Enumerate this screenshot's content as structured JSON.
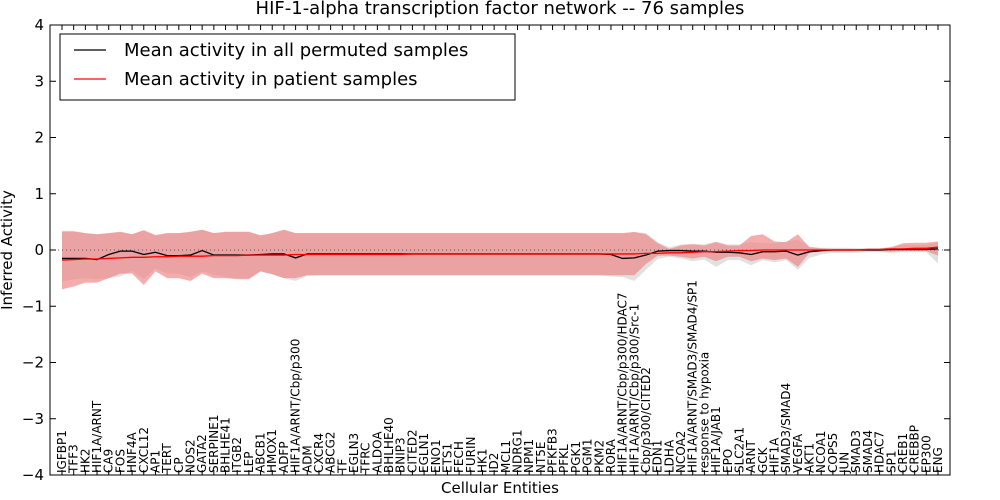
{
  "chart_data": {
    "type": "line",
    "title": "HIF-1-alpha transcription factor network -- 76 samples",
    "xlabel": "Cellular Entities",
    "ylabel": "Inferred Activity",
    "ylim": [
      -4,
      4
    ],
    "yticks": [
      "4",
      "3",
      "2",
      "1",
      "0",
      "−1",
      "−2",
      "−3",
      "−4"
    ],
    "grid": false,
    "legend_position": "top-left",
    "zero_line": "dotted",
    "categories": [
      "IGFBP1",
      "TFF3",
      "HK2",
      "HIF1A/ARNT",
      "CA9",
      "FOS",
      "HNF4A",
      "CXCL12",
      "AP1",
      "TERT",
      "CP",
      "NOS2",
      "GATA2",
      "SERPINE1",
      "BHLHE41",
      "ITGB2",
      "LEP",
      "ABCB1",
      "HMOX1",
      "ADFP",
      "HIF1A/ARNT/Cbp/p300",
      "ADM",
      "CXCR4",
      "ABCG2",
      "TF",
      "EGLN3",
      "TFRC",
      "ALDOA",
      "BHLHE40",
      "BNIP3",
      "CITED2",
      "EGLN1",
      "ENO1",
      "ETS1",
      "FECH",
      "FURIN",
      "HK1",
      "ID2",
      "MCL1",
      "NDRG1",
      "NPM1",
      "NT5E",
      "PFKFB3",
      "PFKL",
      "PGK1",
      "PGM1",
      "PKM2",
      "RORA",
      "HIF1A/ARNT/Cbp/p300/HDAC7",
      "HIF1A/ARNT/Cbp/p300/Src-1",
      "Cbp/p300/CITED2",
      "EDN1",
      "LDHA",
      "NCOA2",
      "HIF1A/ARNT/SMAD3/SMAD4/SP1",
      "response to hypoxia",
      "HIF1A/JAB1",
      "EPO",
      "SLC2A1",
      "ARNT",
      "GCK",
      "HIF1A",
      "SMAD3/SMAD4",
      "VEGFA",
      "AKT1",
      "NCOA1",
      "COPS5",
      "JUN",
      "SMAD3",
      "SMAD4",
      "HDAC7",
      "SP1",
      "CREB1",
      "CREBBP",
      "EP300",
      "ENG"
    ],
    "series": [
      {
        "name": "Mean activity in all permuted samples",
        "color": "#000000",
        "band_color": "#c8c8c8",
        "values": [
          -0.15,
          -0.15,
          -0.15,
          -0.17,
          -0.08,
          -0.02,
          -0.02,
          -0.08,
          -0.04,
          -0.1,
          -0.1,
          -0.09,
          -0.01,
          -0.09,
          -0.09,
          -0.09,
          -0.09,
          -0.08,
          -0.07,
          -0.07,
          -0.14,
          -0.07,
          -0.07,
          -0.07,
          -0.07,
          -0.07,
          -0.07,
          -0.07,
          -0.07,
          -0.07,
          -0.07,
          -0.07,
          -0.07,
          -0.07,
          -0.07,
          -0.07,
          -0.07,
          -0.07,
          -0.07,
          -0.07,
          -0.07,
          -0.07,
          -0.07,
          -0.07,
          -0.07,
          -0.07,
          -0.07,
          -0.08,
          -0.15,
          -0.14,
          -0.09,
          -0.02,
          -0.01,
          -0.01,
          -0.02,
          -0.02,
          -0.04,
          -0.04,
          -0.05,
          -0.08,
          -0.03,
          -0.03,
          -0.02,
          -0.09,
          -0.03,
          -0.01,
          0.0,
          0.0,
          0.0,
          0.0,
          0.0,
          0.01,
          0.01,
          0.01,
          0.01,
          0.02
        ],
        "upper": [
          0.34,
          0.34,
          0.3,
          0.28,
          0.3,
          0.33,
          0.28,
          0.35,
          0.27,
          0.3,
          0.3,
          0.33,
          0.36,
          0.3,
          0.33,
          0.33,
          0.33,
          0.26,
          0.3,
          0.36,
          0.3,
          0.3,
          0.3,
          0.3,
          0.3,
          0.3,
          0.3,
          0.3,
          0.3,
          0.3,
          0.3,
          0.3,
          0.3,
          0.3,
          0.3,
          0.3,
          0.3,
          0.3,
          0.3,
          0.3,
          0.3,
          0.3,
          0.3,
          0.3,
          0.3,
          0.3,
          0.3,
          0.3,
          0.3,
          0.32,
          0.3,
          0.14,
          0.05,
          0.1,
          0.11,
          0.1,
          0.15,
          0.1,
          0.1,
          0.14,
          0.12,
          0.12,
          0.15,
          0.18,
          0.06,
          0.04,
          0.04,
          0.04,
          0.03,
          0.03,
          0.03,
          0.06,
          0.09,
          0.09,
          0.09,
          0.13
        ],
        "lower": [
          -0.56,
          -0.52,
          -0.5,
          -0.52,
          -0.5,
          -0.47,
          -0.37,
          -0.52,
          -0.33,
          -0.42,
          -0.42,
          -0.48,
          -0.38,
          -0.44,
          -0.48,
          -0.5,
          -0.5,
          -0.38,
          -0.43,
          -0.5,
          -0.55,
          -0.46,
          -0.45,
          -0.45,
          -0.45,
          -0.45,
          -0.45,
          -0.45,
          -0.45,
          -0.45,
          -0.45,
          -0.45,
          -0.45,
          -0.45,
          -0.45,
          -0.45,
          -0.45,
          -0.45,
          -0.45,
          -0.45,
          -0.45,
          -0.45,
          -0.45,
          -0.45,
          -0.45,
          -0.45,
          -0.45,
          -0.47,
          -0.48,
          -0.55,
          -0.35,
          -0.16,
          -0.12,
          -0.15,
          -0.2,
          -0.17,
          -0.3,
          -0.18,
          -0.18,
          -0.27,
          -0.18,
          -0.22,
          -0.18,
          -0.35,
          -0.14,
          -0.08,
          -0.05,
          -0.05,
          -0.05,
          -0.04,
          -0.04,
          -0.05,
          -0.04,
          -0.04,
          -0.04,
          -0.24
        ]
      },
      {
        "name": "Mean activity in patient samples",
        "color": "#ff0000",
        "band_color": "#f08080",
        "values": [
          -0.18,
          -0.17,
          -0.16,
          -0.16,
          -0.15,
          -0.14,
          -0.13,
          -0.13,
          -0.12,
          -0.12,
          -0.11,
          -0.11,
          -0.11,
          -0.1,
          -0.1,
          -0.1,
          -0.09,
          -0.09,
          -0.09,
          -0.09,
          -0.08,
          -0.08,
          -0.08,
          -0.08,
          -0.08,
          -0.08,
          -0.08,
          -0.08,
          -0.08,
          -0.08,
          -0.07,
          -0.07,
          -0.07,
          -0.07,
          -0.07,
          -0.07,
          -0.07,
          -0.07,
          -0.07,
          -0.07,
          -0.07,
          -0.07,
          -0.07,
          -0.07,
          -0.07,
          -0.07,
          -0.07,
          -0.07,
          -0.07,
          -0.07,
          -0.06,
          -0.06,
          -0.05,
          -0.05,
          -0.04,
          -0.03,
          -0.03,
          -0.02,
          -0.01,
          -0.01,
          0.0,
          0.0,
          0.0,
          0.0,
          0.0,
          0.0,
          0.0,
          0.0,
          0.0,
          0.01,
          0.01,
          0.02,
          0.02,
          0.03,
          0.03,
          0.05
        ],
        "upper": [
          0.33,
          0.33,
          0.3,
          0.28,
          0.3,
          0.32,
          0.28,
          0.35,
          0.26,
          0.3,
          0.3,
          0.32,
          0.36,
          0.3,
          0.32,
          0.32,
          0.32,
          0.26,
          0.3,
          0.36,
          0.3,
          0.3,
          0.3,
          0.3,
          0.3,
          0.3,
          0.3,
          0.3,
          0.3,
          0.3,
          0.3,
          0.3,
          0.3,
          0.3,
          0.3,
          0.3,
          0.3,
          0.3,
          0.3,
          0.3,
          0.3,
          0.3,
          0.3,
          0.3,
          0.3,
          0.3,
          0.3,
          0.3,
          0.3,
          0.32,
          0.28,
          0.12,
          0.02,
          0.08,
          0.1,
          0.08,
          0.14,
          0.08,
          0.08,
          0.25,
          0.28,
          0.15,
          0.14,
          0.28,
          0.05,
          0.03,
          0.02,
          0.02,
          0.02,
          0.02,
          0.02,
          0.05,
          0.12,
          0.13,
          0.13,
          0.15
        ],
        "lower": [
          -0.7,
          -0.65,
          -0.58,
          -0.58,
          -0.5,
          -0.42,
          -0.42,
          -0.62,
          -0.38,
          -0.5,
          -0.5,
          -0.55,
          -0.42,
          -0.5,
          -0.5,
          -0.52,
          -0.52,
          -0.38,
          -0.43,
          -0.5,
          -0.5,
          -0.45,
          -0.45,
          -0.45,
          -0.45,
          -0.45,
          -0.45,
          -0.45,
          -0.45,
          -0.45,
          -0.45,
          -0.45,
          -0.45,
          -0.45,
          -0.45,
          -0.45,
          -0.45,
          -0.45,
          -0.45,
          -0.45,
          -0.45,
          -0.45,
          -0.45,
          -0.45,
          -0.45,
          -0.45,
          -0.45,
          -0.45,
          -0.45,
          -0.45,
          -0.25,
          -0.1,
          -0.1,
          -0.12,
          -0.15,
          -0.12,
          -0.2,
          -0.12,
          -0.12,
          -0.2,
          -0.15,
          -0.18,
          -0.15,
          -0.3,
          -0.05,
          -0.03,
          -0.02,
          -0.02,
          -0.02,
          -0.02,
          -0.02,
          -0.03,
          -0.02,
          -0.02,
          -0.02,
          -0.1
        ]
      }
    ]
  }
}
